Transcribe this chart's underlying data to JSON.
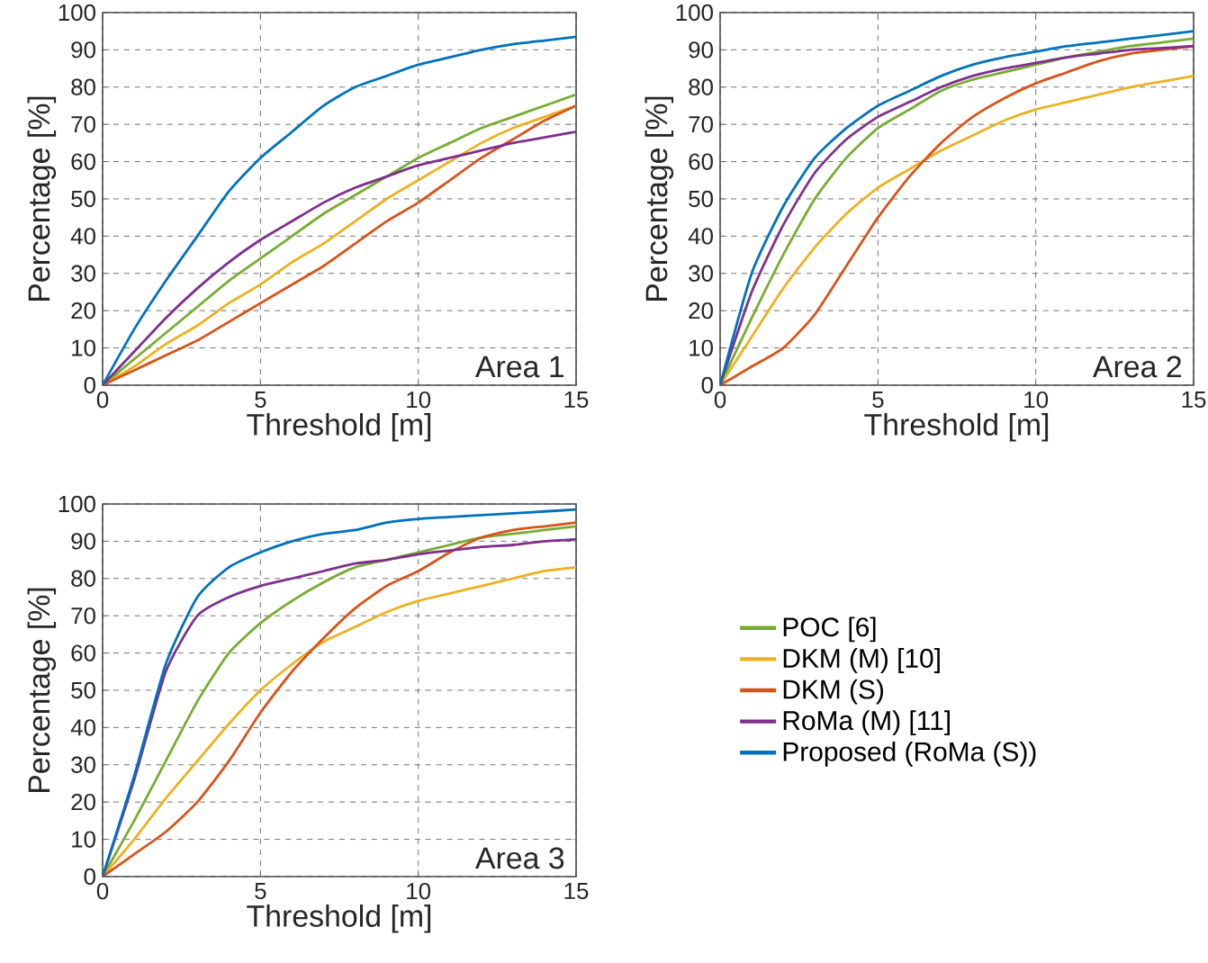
{
  "chart_data": [
    {
      "type": "line",
      "xlabel": "Threshold [m]",
      "ylabel": "Percentage [%]",
      "x": [
        0,
        1,
        2,
        3,
        4,
        5,
        6,
        7,
        8,
        9,
        10,
        11,
        12,
        13,
        14,
        15
      ],
      "xlim": [
        0,
        15
      ],
      "ylim": [
        0,
        100
      ],
      "xticks": [
        0,
        5,
        10,
        15
      ],
      "yticks": [
        0,
        10,
        20,
        30,
        40,
        50,
        60,
        70,
        80,
        90,
        100
      ],
      "grid": true,
      "annotations": [
        "Area 1"
      ],
      "series": [
        {
          "color": "#77ac30",
          "values": [
            0,
            7,
            14,
            21,
            28,
            34,
            40,
            46,
            51,
            56,
            61,
            65,
            69,
            72,
            75,
            78
          ]
        },
        {
          "color": "#edb120",
          "values": [
            0,
            5,
            11,
            16,
            22,
            27,
            33,
            38,
            44,
            50,
            55,
            60,
            65,
            69,
            72,
            75
          ]
        },
        {
          "color": "#d95319",
          "values": [
            0,
            4,
            8,
            12,
            17,
            22,
            27,
            32,
            38,
            44,
            49,
            55,
            61,
            66,
            71,
            75
          ]
        },
        {
          "color": "#7e2f8e",
          "values": [
            0,
            9,
            18,
            26,
            33,
            39,
            44,
            49,
            53,
            56,
            59,
            61,
            63,
            65,
            66.5,
            68
          ]
        },
        {
          "color": "#0072bd",
          "values": [
            0,
            15,
            28,
            40,
            52,
            61,
            68,
            75,
            80,
            83,
            86,
            88,
            90,
            91.5,
            92.5,
            93.5
          ]
        }
      ]
    },
    {
      "type": "line",
      "xlabel": "Threshold [m]",
      "ylabel": "Percentage [%]",
      "x": [
        0,
        1,
        2,
        3,
        4,
        5,
        6,
        7,
        8,
        9,
        10,
        11,
        12,
        13,
        14,
        15
      ],
      "xlim": [
        0,
        15
      ],
      "ylim": [
        0,
        100
      ],
      "xticks": [
        0,
        5,
        10,
        15
      ],
      "yticks": [
        0,
        10,
        20,
        30,
        40,
        50,
        60,
        70,
        80,
        90,
        100
      ],
      "grid": true,
      "annotations": [
        "Area 2"
      ],
      "series": [
        {
          "color": "#77ac30",
          "values": [
            0,
            18,
            35,
            50,
            61,
            69,
            74,
            79,
            82,
            84,
            86,
            88,
            89.5,
            91,
            92,
            93
          ]
        },
        {
          "color": "#edb120",
          "values": [
            0,
            13,
            26,
            37,
            46,
            53,
            58,
            63,
            67,
            71,
            74,
            76,
            78,
            80,
            81.5,
            83
          ]
        },
        {
          "color": "#d95319",
          "values": [
            0,
            5,
            10,
            19,
            32,
            45,
            56,
            65,
            72,
            77,
            81,
            84,
            87,
            89,
            90,
            91
          ]
        },
        {
          "color": "#7e2f8e",
          "values": [
            0,
            25,
            43,
            57,
            66,
            72,
            76,
            80,
            83,
            85,
            86.5,
            88,
            89,
            90,
            90.5,
            91
          ]
        },
        {
          "color": "#0072bd",
          "values": [
            0,
            30,
            48,
            61,
            69,
            75,
            79,
            83,
            86,
            88,
            89.5,
            91,
            92,
            93,
            94,
            95
          ]
        }
      ]
    },
    {
      "type": "line",
      "xlabel": "Threshold [m]",
      "ylabel": "Percentage [%]",
      "x": [
        0,
        1,
        2,
        3,
        4,
        5,
        6,
        7,
        8,
        9,
        10,
        11,
        12,
        13,
        14,
        15
      ],
      "xlim": [
        0,
        15
      ],
      "ylim": [
        0,
        100
      ],
      "xticks": [
        0,
        5,
        10,
        15
      ],
      "yticks": [
        0,
        10,
        20,
        30,
        40,
        50,
        60,
        70,
        80,
        90,
        100
      ],
      "grid": true,
      "legend": "right",
      "annotations": [
        "Area 3"
      ],
      "series": [
        {
          "name": "POC [6]",
          "color": "#77ac30",
          "values": [
            0,
            15,
            31,
            47,
            60,
            68,
            74,
            79,
            83,
            85,
            87,
            89,
            91,
            92,
            93,
            94
          ]
        },
        {
          "name": "DKM (M) [10]",
          "color": "#edb120",
          "values": [
            0,
            10,
            21,
            31,
            41,
            50,
            57,
            63,
            67,
            71,
            74,
            76,
            78,
            80,
            82,
            83
          ]
        },
        {
          "name": "DKM (S)",
          "color": "#d95319",
          "values": [
            0,
            6,
            12,
            20,
            31,
            44,
            55,
            64,
            72,
            78,
            82,
            87,
            91,
            93,
            94,
            95
          ]
        },
        {
          "name": "RoMa (M) [11]",
          "color": "#7e2f8e",
          "values": [
            0,
            26,
            55,
            70,
            75,
            78,
            80,
            82,
            84,
            85,
            86.5,
            87.5,
            88.5,
            89,
            90,
            90.5
          ]
        },
        {
          "name": "Proposed (RoMa (S))",
          "color": "#0072bd",
          "values": [
            0,
            27,
            57,
            75,
            83,
            87,
            90,
            92,
            93,
            95,
            96,
            96.5,
            97,
            97.5,
            98,
            98.5
          ]
        }
      ]
    }
  ]
}
